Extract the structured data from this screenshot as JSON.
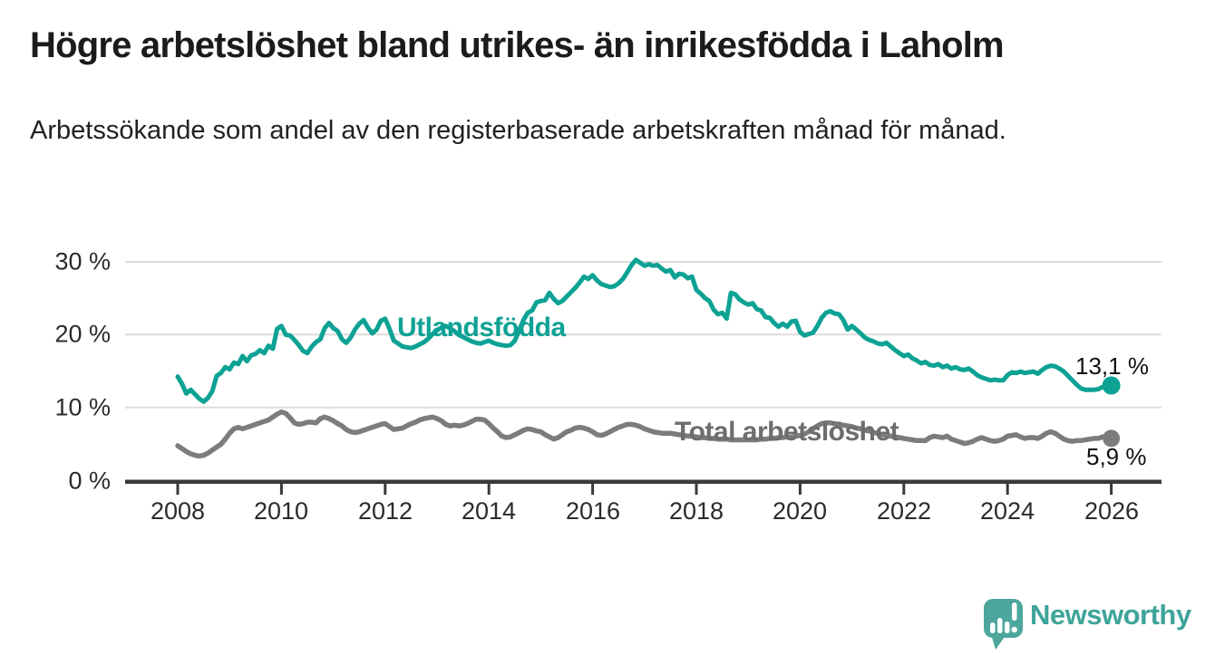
{
  "page": {
    "title": "Högre arbetslöshet bland utrikes- än inrikesfödda i Laholm",
    "subtitle": "Arbetssökande som andel av den registerbaserade arbetskraften månad för månad."
  },
  "chart_data": {
    "type": "line",
    "title": "Högre arbetslöshet bland utrikes- än inrikesfödda i Laholm",
    "subtitle": "Arbetssökande som andel av den registerbaserade arbetskraften månad för månad.",
    "grid": "horizontal-only",
    "legend": "inline-labels-on-lines",
    "x_axis": {
      "tick_labels": [
        "2008",
        "2010",
        "2012",
        "2014",
        "2016",
        "2018",
        "2020",
        "2022",
        "2024",
        "2026"
      ],
      "ticks": [
        2008,
        2010,
        2012,
        2014,
        2016,
        2018,
        2020,
        2022,
        2024,
        2026
      ],
      "range": [
        2007.0,
        2027.0
      ]
    },
    "y_axis": {
      "tick_labels": [
        "30 %",
        "20 %",
        "10 %",
        "0 %"
      ],
      "ticks": [
        30,
        20,
        10,
        0
      ],
      "unit": "%",
      "range": [
        0,
        31
      ]
    },
    "series": [
      {
        "name": "Utlandsfödda",
        "color": "#0da294",
        "label_color": "#0da294",
        "end_label": "13,1 %",
        "end_value": 13.1,
        "start_year": 2008,
        "step_months": 1,
        "monthly_values": [
          14.3,
          13.3,
          12.0,
          12.5,
          11.9,
          11.3,
          10.9,
          11.4,
          12.3,
          14.4,
          14.8,
          15.6,
          15.3,
          16.2,
          16.0,
          17.1,
          16.4,
          17.2,
          17.4,
          17.9,
          17.5,
          18.5,
          18.1,
          20.8,
          21.2,
          20.0,
          19.9,
          19.3,
          18.6,
          17.8,
          17.5,
          18.4,
          19.0,
          19.4,
          20.9,
          21.6,
          20.9,
          20.5,
          19.4,
          18.9,
          19.6,
          20.7,
          21.5,
          22.0,
          21.0,
          20.2,
          20.7,
          21.9,
          22.2,
          20.8,
          19.2,
          18.8,
          18.4,
          18.3,
          18.2,
          18.4,
          18.7,
          19.0,
          19.5,
          20.1,
          20.6,
          21.0,
          21.2,
          20.9,
          20.5,
          20.0,
          19.7,
          19.4,
          19.1,
          18.9,
          18.8,
          19.0,
          19.2,
          18.9,
          18.7,
          18.6,
          18.5,
          18.6,
          19.2,
          20.6,
          22.0,
          23.0,
          23.3,
          24.4,
          24.6,
          24.7,
          25.7,
          24.9,
          24.3,
          24.6,
          25.2,
          25.8,
          26.4,
          27.1,
          27.9,
          27.6,
          28.1,
          27.4,
          26.9,
          26.7,
          26.5,
          26.6,
          27.0,
          27.6,
          28.5,
          29.5,
          30.2,
          29.8,
          29.4,
          29.6,
          29.4,
          29.5,
          29.0,
          28.6,
          28.8,
          27.8,
          28.3,
          28.2,
          27.7,
          27.9,
          26.1,
          25.6,
          25.0,
          24.6,
          23.4,
          22.8,
          23.0,
          22.2,
          25.7,
          25.5,
          24.8,
          24.4,
          24.1,
          24.3,
          23.5,
          23.3,
          22.4,
          22.3,
          21.6,
          21.1,
          21.5,
          21.1,
          21.8,
          21.9,
          20.4,
          19.9,
          20.1,
          20.3,
          21.2,
          22.3,
          23.0,
          23.2,
          22.9,
          22.8,
          22.0,
          20.7,
          21.2,
          20.7,
          20.2,
          19.6,
          19.3,
          19.1,
          18.8,
          18.7,
          18.9,
          18.4,
          17.9,
          17.5,
          17.1,
          17.3,
          16.8,
          16.5,
          16.1,
          16.3,
          15.9,
          15.8,
          16.0,
          15.6,
          15.8,
          15.4,
          15.6,
          15.3,
          15.2,
          15.4,
          15.0,
          14.5,
          14.2,
          14.0,
          13.8,
          13.9,
          13.8,
          13.8,
          14.5,
          14.9,
          14.8,
          15.0,
          14.8,
          14.9,
          15.0,
          14.7,
          15.2,
          15.6,
          15.8,
          15.7,
          15.4,
          15.0,
          14.4,
          13.8,
          13.2,
          12.7,
          12.5,
          12.5,
          12.5,
          12.6,
          12.9,
          13.0,
          13.1
        ]
      },
      {
        "name": "Total arbetslöshet",
        "color": "#7c7c7c",
        "label_color": "#6d6d6d",
        "end_label": "5,9 %",
        "end_value": 5.9,
        "start_year": 2008,
        "step_months": 1,
        "monthly_values": [
          4.9,
          4.5,
          4.1,
          3.8,
          3.6,
          3.5,
          3.6,
          3.9,
          4.3,
          4.7,
          5.1,
          5.8,
          6.6,
          7.2,
          7.4,
          7.2,
          7.4,
          7.6,
          7.8,
          8.0,
          8.2,
          8.4,
          8.8,
          9.2,
          9.5,
          9.3,
          8.7,
          8.0,
          7.8,
          7.9,
          8.1,
          8.1,
          8.0,
          8.6,
          8.8,
          8.6,
          8.3,
          7.9,
          7.6,
          7.1,
          6.8,
          6.7,
          6.8,
          7.0,
          7.2,
          7.4,
          7.6,
          7.8,
          7.9,
          7.5,
          7.1,
          7.2,
          7.3,
          7.6,
          7.9,
          8.1,
          8.4,
          8.6,
          8.7,
          8.8,
          8.6,
          8.3,
          7.8,
          7.6,
          7.7,
          7.6,
          7.7,
          7.9,
          8.2,
          8.5,
          8.5,
          8.4,
          7.9,
          7.3,
          6.8,
          6.2,
          6.0,
          6.1,
          6.4,
          6.7,
          7.0,
          7.2,
          7.1,
          6.9,
          6.8,
          6.4,
          6.1,
          5.8,
          6.0,
          6.4,
          6.8,
          7.0,
          7.3,
          7.4,
          7.3,
          7.1,
          6.8,
          6.4,
          6.3,
          6.5,
          6.8,
          7.1,
          7.4,
          7.6,
          7.8,
          7.8,
          7.7,
          7.5,
          7.2,
          7.0,
          6.8,
          6.7,
          6.6,
          6.6,
          6.6,
          6.5,
          6.4,
          6.3,
          6.2,
          6.2,
          6.1,
          6.0,
          6.0,
          5.9,
          5.9,
          5.8,
          5.8,
          5.8,
          5.7,
          5.7,
          5.7,
          5.7,
          5.7,
          5.7,
          5.7,
          5.8,
          5.8,
          5.9,
          5.9,
          6.0,
          6.0,
          6.1,
          6.1,
          6.2,
          6.3,
          6.5,
          6.8,
          7.2,
          7.6,
          7.9,
          8.0,
          8.0,
          7.9,
          7.8,
          7.7,
          7.6,
          7.5,
          7.3,
          7.2,
          7.0,
          6.9,
          6.7,
          6.6,
          6.4,
          6.3,
          6.2,
          6.1,
          6.0,
          5.9,
          5.8,
          5.7,
          5.6,
          5.6,
          5.6,
          6.0,
          6.2,
          6.1,
          6.0,
          6.2,
          5.8,
          5.6,
          5.4,
          5.2,
          5.3,
          5.5,
          5.8,
          6.0,
          5.8,
          5.6,
          5.5,
          5.6,
          5.8,
          6.2,
          6.3,
          6.4,
          6.1,
          5.9,
          6.0,
          6.0,
          5.9,
          6.2,
          6.6,
          6.8,
          6.6,
          6.2,
          5.8,
          5.6,
          5.5,
          5.6,
          5.6,
          5.7,
          5.8,
          5.9,
          5.9,
          6.1,
          6.2,
          5.9
        ]
      }
    ]
  },
  "branding": {
    "name": "Newsworthy",
    "icon": "speech-bubble-bar-chart-icon",
    "icon_color": "#4ca69c",
    "text_color": "#3ea49a"
  }
}
